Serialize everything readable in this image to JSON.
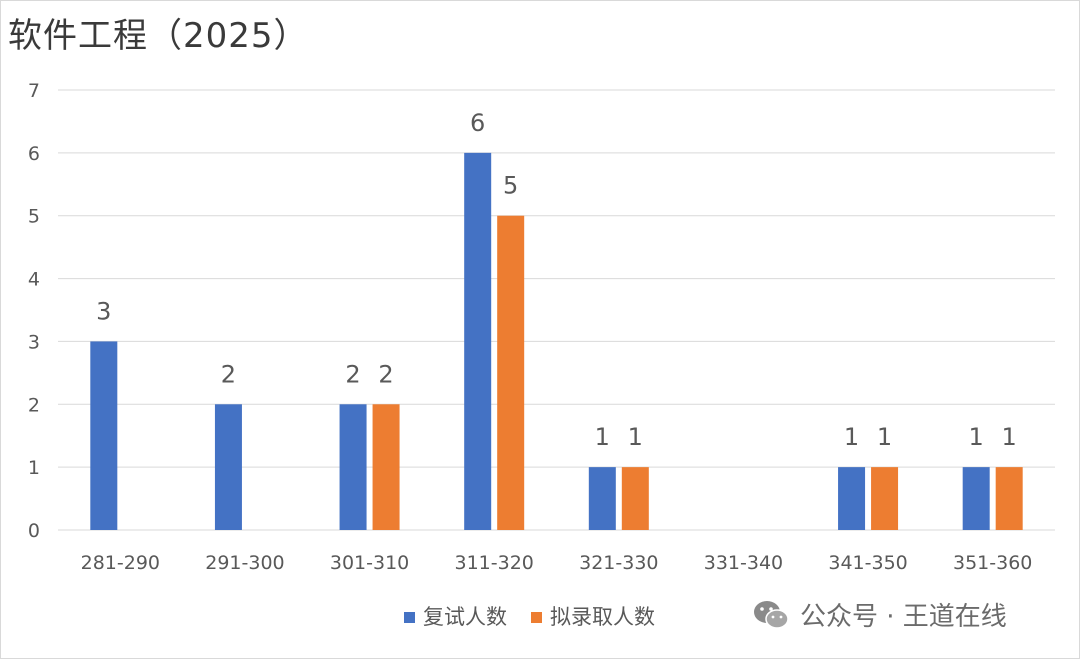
{
  "chart_data": {
    "type": "bar",
    "title": "软件工程（2025）",
    "categories": [
      "281-290",
      "291-300",
      "301-310",
      "311-320",
      "321-330",
      "331-340",
      "341-350",
      "351-360"
    ],
    "series": [
      {
        "name": "复试人数",
        "values": [
          3,
          2,
          2,
          6,
          1,
          0,
          1,
          1
        ],
        "color": "#4472c4"
      },
      {
        "name": "拟录取人数",
        "values": [
          0,
          0,
          2,
          5,
          1,
          0,
          1,
          1
        ],
        "color": "#ed7d31"
      }
    ],
    "ylim": [
      0,
      7
    ],
    "yticks": [
      0,
      1,
      2,
      3,
      4,
      5,
      6,
      7
    ],
    "grid": true,
    "legend_position": "bottom"
  },
  "watermark": {
    "text": "公众号 · 王道在线",
    "icon": "wechat-icon"
  }
}
